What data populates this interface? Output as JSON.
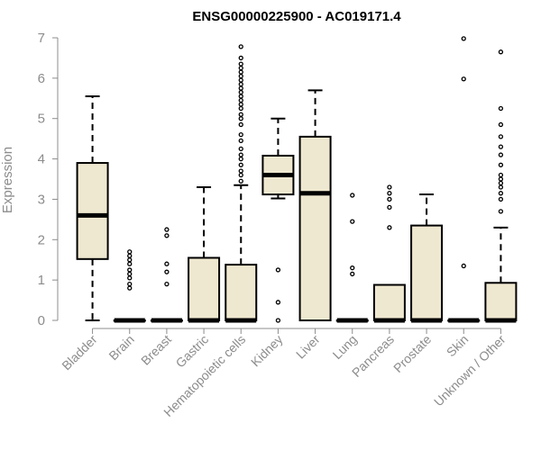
{
  "chart_data": {
    "type": "boxplot",
    "title": "ENSG00000225900 - AC019171.4",
    "xlabel": "",
    "ylabel": "Expression",
    "ylim": [
      0,
      7
    ],
    "yticks": [
      0,
      1,
      2,
      3,
      4,
      5,
      6,
      7
    ],
    "box_fill": "#efe8d0",
    "categories": [
      "Bladder",
      "Brain",
      "Breast",
      "Gastric",
      "Hematopoietic cells",
      "Kidney",
      "Liver",
      "Lung",
      "Pancreas",
      "Prostate",
      "Skin",
      "Unknown / Other"
    ],
    "boxes": [
      {
        "name": "Bladder",
        "whisker_low": 0,
        "q1": 1.52,
        "median": 2.6,
        "q3": 3.9,
        "whisker_high": 5.55,
        "outliers": []
      },
      {
        "name": "Brain",
        "whisker_low": 0,
        "q1": 0,
        "median": 0,
        "q3": 0,
        "whisker_high": 0,
        "outliers": [
          0.8,
          0.9,
          1.05,
          1.15,
          1.25,
          1.4,
          1.5,
          1.6,
          1.7
        ]
      },
      {
        "name": "Breast",
        "whisker_low": 0,
        "q1": 0,
        "median": 0,
        "q3": 0,
        "whisker_high": 0,
        "outliers": [
          0.9,
          1.2,
          1.4,
          2.1,
          2.25
        ]
      },
      {
        "name": "Gastric",
        "whisker_low": 0,
        "q1": 0,
        "median": 0,
        "q3": 1.55,
        "whisker_high": 3.3,
        "outliers": []
      },
      {
        "name": "Hematopoietic cells",
        "whisker_low": 0,
        "q1": 0,
        "median": 0,
        "q3": 1.38,
        "whisker_high": 3.35,
        "outliers": [
          3.45,
          3.6,
          3.7,
          3.85,
          4.0,
          4.1,
          4.25,
          4.45,
          4.6,
          4.85,
          5.0,
          5.1,
          5.25,
          5.35,
          5.45,
          5.55,
          5.65,
          5.75,
          5.85,
          5.95,
          6.05,
          6.15,
          6.25,
          6.35,
          6.5,
          6.78
        ]
      },
      {
        "name": "Kidney",
        "whisker_low": 3.02,
        "q1": 3.12,
        "median": 3.6,
        "q3": 4.08,
        "whisker_high": 5.0,
        "outliers": [
          0,
          0.45,
          1.25
        ]
      },
      {
        "name": "Liver",
        "whisker_low": 0,
        "q1": 0,
        "median": 3.15,
        "q3": 4.55,
        "whisker_high": 5.7,
        "outliers": []
      },
      {
        "name": "Lung",
        "whisker_low": 0,
        "q1": 0,
        "median": 0,
        "q3": 0,
        "whisker_high": 0,
        "outliers": [
          1.15,
          1.3,
          2.45,
          3.1
        ]
      },
      {
        "name": "Pancreas",
        "whisker_low": 0,
        "q1": 0,
        "median": 0,
        "q3": 0.88,
        "whisker_high": 0.88,
        "outliers": [
          2.3,
          2.8,
          3.0,
          3.15,
          3.3
        ]
      },
      {
        "name": "Prostate",
        "whisker_low": 0,
        "q1": 0,
        "median": 0,
        "q3": 2.35,
        "whisker_high": 3.12,
        "outliers": []
      },
      {
        "name": "Skin",
        "whisker_low": 0,
        "q1": 0,
        "median": 0,
        "q3": 0,
        "whisker_high": 0,
        "outliers": [
          1.35,
          5.98,
          6.98
        ]
      },
      {
        "name": "Unknown / Other",
        "whisker_low": 0,
        "q1": 0,
        "median": 0,
        "q3": 0.93,
        "whisker_high": 2.3,
        "outliers": [
          2.7,
          3.0,
          3.15,
          3.3,
          3.4,
          3.5,
          3.6,
          3.85,
          4.1,
          4.3,
          4.55,
          4.85,
          5.25,
          6.65
        ]
      }
    ]
  }
}
